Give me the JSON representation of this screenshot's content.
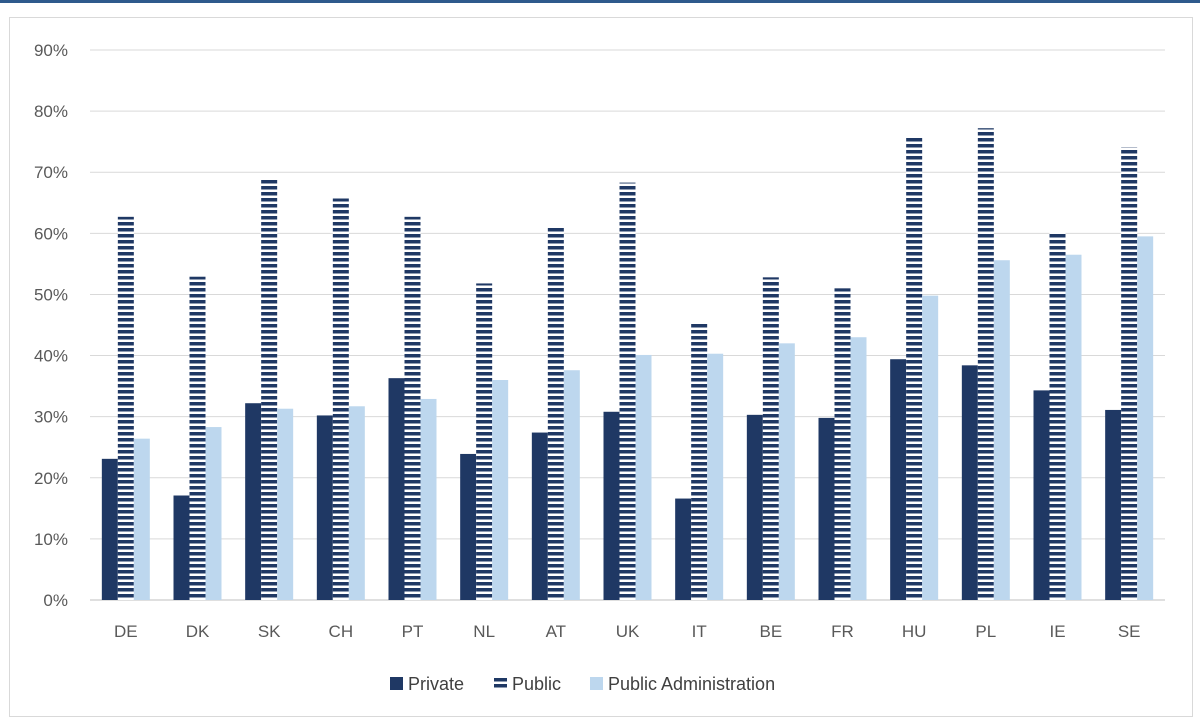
{
  "chart_data": {
    "type": "bar",
    "categories": [
      "DE",
      "DK",
      "SK",
      "CH",
      "PT",
      "NL",
      "AT",
      "UK",
      "IT",
      "BE",
      "FR",
      "HU",
      "PL",
      "IE",
      "SE"
    ],
    "series": [
      {
        "name": "Private",
        "values": [
          23.1,
          17.1,
          32.2,
          30.2,
          36.3,
          23.9,
          27.4,
          30.8,
          16.6,
          30.3,
          29.8,
          39.4,
          38.4,
          34.3,
          31.1
        ],
        "color": "#1f3864",
        "pattern": "solid"
      },
      {
        "name": "Public",
        "values": [
          62.7,
          52.9,
          68.8,
          65.7,
          62.7,
          51.8,
          61.2,
          68.3,
          45.4,
          52.8,
          51.0,
          75.9,
          77.2,
          60.2,
          74.1
        ],
        "color": "#1f3864",
        "pattern": "horizontal-stripes"
      },
      {
        "name": "Public Administration",
        "values": [
          26.4,
          28.3,
          31.3,
          31.7,
          32.9,
          36.0,
          37.6,
          40.1,
          40.3,
          42.0,
          43.0,
          49.8,
          55.6,
          56.5,
          59.5
        ],
        "color": "#bdd7ee",
        "pattern": "solid"
      }
    ],
    "y_ticks": [
      "0%",
      "10%",
      "20%",
      "30%",
      "40%",
      "50%",
      "60%",
      "70%",
      "80%",
      "90%"
    ],
    "ylim": [
      0,
      90
    ],
    "y_unit": "%",
    "grid": true,
    "legend_position": "bottom"
  }
}
